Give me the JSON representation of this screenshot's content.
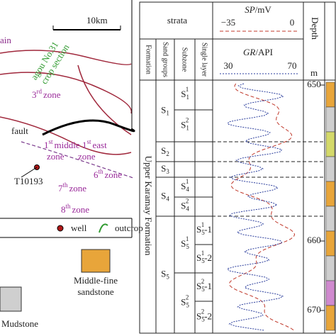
{
  "map": {
    "scale": "10km",
    "cut_label": "ain",
    "section_1": "agou No.31",
    "section_2": "crop section",
    "fault": "fault",
    "well_name": "T10193",
    "zones": [
      {
        "num": "3",
        "sup": "rd",
        "word": "zone"
      },
      {
        "num": "1",
        "sup": "st",
        "word": "middle"
      },
      {
        "num": "",
        "sup": "",
        "word": "zone"
      },
      {
        "num": "1",
        "sup": "st",
        "word": "east"
      },
      {
        "num": "",
        "sup": "",
        "word": "zone"
      },
      {
        "num": "6",
        "sup": "th",
        "word": "zone"
      },
      {
        "num": "7",
        "sup": "th",
        "word": "zone"
      },
      {
        "num": "8",
        "sup": "th",
        "word": "zone"
      }
    ],
    "legend": {
      "well": "well",
      "outcrop": "outcrop",
      "sandstone_1": "Middle-fine",
      "sandstone_2": "sandstone",
      "mudstone": "Mudstone"
    }
  },
  "column": {
    "strata": "strata",
    "sp": "SP",
    "sp_unit": "/mV",
    "sp_min": "−35",
    "sp_max": "0",
    "gr": "GR",
    "gr_unit": "/API",
    "gr_min": "30",
    "gr_max": "70",
    "depth": "Depth",
    "depth_unit": "m",
    "headers": [
      "Formation",
      "Sand groups",
      "Subzone",
      "Single layer"
    ],
    "formation": "Upper Karamay Formation",
    "depths": [
      "650",
      "660",
      "670"
    ],
    "groups": [
      {
        "base": "S",
        "sub": "1"
      },
      {
        "base": "S",
        "sub": "2"
      },
      {
        "base": "S",
        "sub": "3"
      },
      {
        "base": "S",
        "sub": "4"
      },
      {
        "base": "S",
        "sub": "5"
      }
    ],
    "subzones": [
      {
        "base": "S",
        "sub": "1",
        "sup": "1"
      },
      {
        "base": "S",
        "sub": "1",
        "sup": "2"
      },
      {
        "base": "S",
        "sub": "4",
        "sup": "1"
      },
      {
        "base": "S",
        "sub": "4",
        "sup": "2"
      },
      {
        "base": "S",
        "sub": "5",
        "sup": "1"
      },
      {
        "base": "S",
        "sub": "5",
        "sup": "2"
      }
    ],
    "layers": [
      {
        "base": "S",
        "sub": "5",
        "sup": "1",
        "suffix": "-1"
      },
      {
        "base": "S",
        "sub": "5",
        "sup": "1",
        "suffix": "-2"
      },
      {
        "base": "S",
        "sub": "5",
        "sup": "2",
        "suffix": "-1"
      },
      {
        "base": "S",
        "sub": "5",
        "sup": "2",
        "suffix": "-2"
      }
    ]
  }
}
